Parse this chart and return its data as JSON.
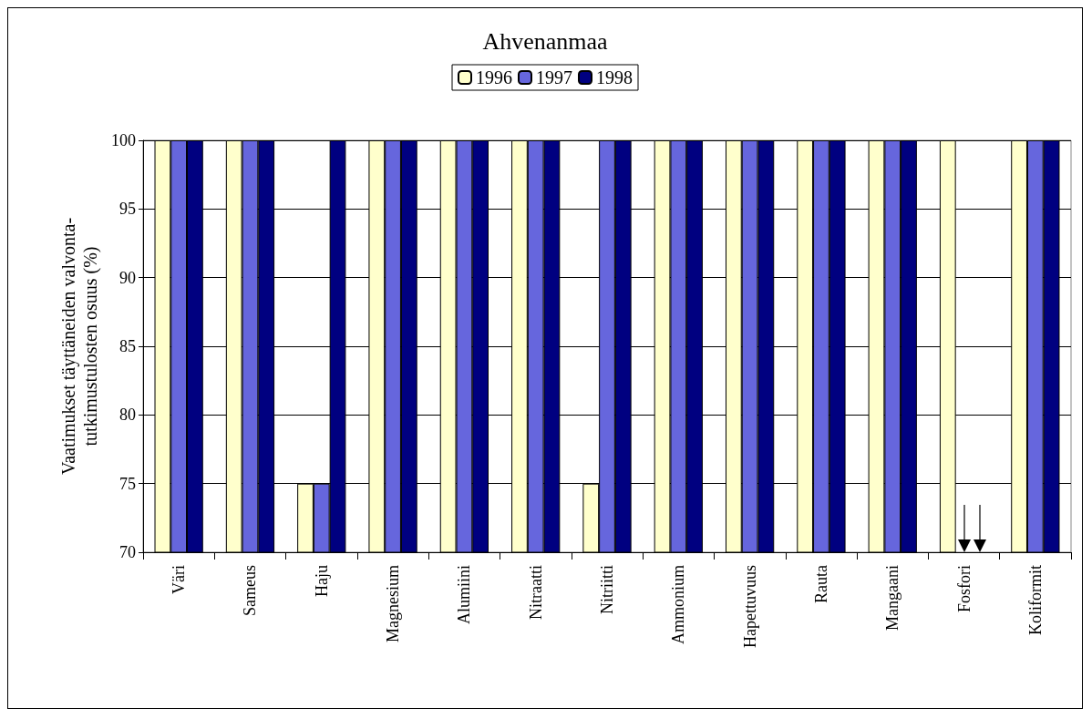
{
  "chart_data": {
    "type": "bar",
    "title": "Ahvenanmaa",
    "ylabel": "Vaatimukset täyttäneiden valvonta-\ntutkimustulosten osuus (%)",
    "categories": [
      "Väri",
      "Sameus",
      "Haju",
      "Magnesium",
      "Alumiini",
      "Nitraatti",
      "Nitriitti",
      "Ammonium",
      "Hapettuvuus",
      "Rauta",
      "Mangaani",
      "Fosfori",
      "Koliformit"
    ],
    "series": [
      {
        "name": "1996",
        "color": "#ffffcc",
        "values": [
          100,
          100,
          75,
          100,
          100,
          100,
          75,
          100,
          100,
          100,
          100,
          100,
          100
        ]
      },
      {
        "name": "1997",
        "color": "#6666dd",
        "values": [
          100,
          100,
          75,
          100,
          100,
          100,
          100,
          100,
          100,
          100,
          100,
          null,
          100
        ]
      },
      {
        "name": "1998",
        "color": "#000080",
        "values": [
          100,
          100,
          100,
          100,
          100,
          100,
          100,
          100,
          100,
          100,
          100,
          null,
          100
        ]
      }
    ],
    "ylim": [
      70,
      100
    ],
    "yticks": [
      70,
      75,
      80,
      85,
      90,
      95,
      100
    ],
    "grid": "y",
    "legend": "top"
  }
}
